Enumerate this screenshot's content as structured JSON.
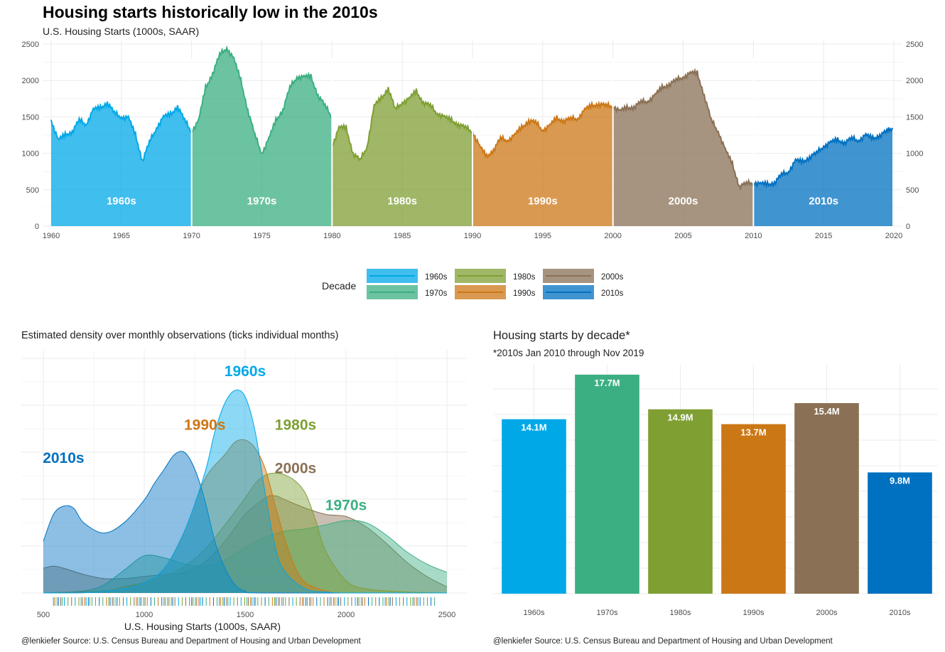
{
  "title": "Housing starts historically low in the 2010s",
  "subtitle": "U.S. Housing Starts (1000s, SAAR)",
  "colors": {
    "1960s": "#00A8E8",
    "1970s": "#3BAF82",
    "1980s": "#7F9F33",
    "1990s": "#CC7716",
    "2000s": "#8A7055",
    "2010s": "#0070C0"
  },
  "legend": {
    "title": "Decade",
    "items": [
      "1960s",
      "1970s",
      "1980s",
      "1990s",
      "2000s",
      "2010s"
    ]
  },
  "density_panel": {
    "title": "Estimated density over monthly observations (ticks individual months)",
    "caption": "@lenkiefer Source:  U.S. Census Bureau and Department of Housing and Urban Development"
  },
  "bar_panel": {
    "title": "Housing starts by decade*",
    "subtitle": "*2010s Jan 2010 through Nov 2019",
    "caption": "@lenkiefer Source: U.S. Census Bureau and Department of Housing and Urban Development"
  },
  "chart_data": [
    {
      "type": "area",
      "title": "Housing starts historically low in the 2010s",
      "subtitle": "U.S. Housing Starts (1000s, SAAR)",
      "xlabel": "",
      "ylabel": "",
      "xlim": [
        1960,
        2020
      ],
      "ylim": [
        0,
        2500
      ],
      "x_ticks": [
        1960,
        1965,
        1970,
        1975,
        1980,
        1985,
        1990,
        1995,
        2000,
        2005,
        2010,
        2015,
        2020
      ],
      "y_ticks": [
        0,
        500,
        1000,
        1500,
        2000,
        2500
      ],
      "decade_labels": [
        "1960s",
        "1970s",
        "1980s",
        "1990s",
        "2000s",
        "2010s"
      ],
      "series": [
        {
          "name": "1960s",
          "x": [
            1960,
            1960.5,
            1961,
            1961.5,
            1962,
            1962.5,
            1963,
            1963.5,
            1964,
            1964.5,
            1965,
            1965.5,
            1966,
            1966.5,
            1967,
            1967.5,
            1968,
            1968.5,
            1969,
            1969.5,
            1970
          ],
          "values": [
            1460,
            1180,
            1250,
            1300,
            1450,
            1400,
            1600,
            1620,
            1700,
            1550,
            1500,
            1490,
            1250,
            900,
            1150,
            1350,
            1500,
            1530,
            1650,
            1450,
            1300
          ]
        },
        {
          "name": "1970s",
          "x": [
            1970,
            1970.5,
            1971,
            1971.5,
            1972,
            1972.5,
            1973,
            1973.5,
            1974,
            1974.5,
            1975,
            1975.5,
            1976,
            1976.5,
            1977,
            1977.5,
            1978,
            1978.5,
            1979,
            1979.5,
            1980
          ],
          "values": [
            1300,
            1450,
            1900,
            2100,
            2350,
            2450,
            2300,
            2000,
            1600,
            1250,
            1000,
            1200,
            1450,
            1600,
            1900,
            2050,
            2050,
            2050,
            1800,
            1650,
            1500
          ]
        },
        {
          "name": "1980s",
          "x": [
            1980,
            1980.5,
            1981,
            1981.5,
            1982,
            1982.5,
            1983,
            1983.5,
            1984,
            1984.5,
            1985,
            1985.5,
            1986,
            1986.5,
            1987,
            1987.5,
            1988,
            1988.5,
            1989,
            1989.5,
            1990
          ],
          "values": [
            1100,
            1350,
            1350,
            1000,
            900,
            1100,
            1650,
            1750,
            1900,
            1600,
            1700,
            1750,
            1850,
            1700,
            1650,
            1550,
            1500,
            1450,
            1400,
            1350,
            1300
          ]
        },
        {
          "name": "1990s",
          "x": [
            1990,
            1990.5,
            1991,
            1991.5,
            1992,
            1992.5,
            1993,
            1993.5,
            1994,
            1994.5,
            1995,
            1995.5,
            1996,
            1996.5,
            1997,
            1997.5,
            1998,
            1998.5,
            1999,
            1999.5,
            2000
          ],
          "values": [
            1300,
            1100,
            950,
            1050,
            1200,
            1180,
            1250,
            1350,
            1450,
            1420,
            1320,
            1380,
            1480,
            1450,
            1470,
            1480,
            1600,
            1650,
            1680,
            1650,
            1650
          ]
        },
        {
          "name": "2000s",
          "x": [
            2000,
            2000.5,
            2001,
            2001.5,
            2002,
            2002.5,
            2003,
            2003.5,
            2004,
            2004.5,
            2005,
            2005.5,
            2006,
            2006.5,
            2007,
            2007.5,
            2008,
            2008.5,
            2009,
            2009.5,
            2010
          ],
          "values": [
            1650,
            1580,
            1620,
            1640,
            1700,
            1720,
            1800,
            1900,
            1950,
            2000,
            2050,
            2100,
            2100,
            1800,
            1450,
            1300,
            1050,
            850,
            550,
            580,
            600
          ]
        },
        {
          "name": "2010s",
          "x": [
            2010,
            2010.5,
            2011,
            2011.5,
            2012,
            2012.5,
            2013,
            2013.5,
            2014,
            2014.5,
            2015,
            2015.5,
            2016,
            2016.5,
            2017,
            2017.5,
            2018,
            2018.5,
            2019,
            2019.5,
            2019.9
          ],
          "values": [
            600,
            580,
            570,
            600,
            700,
            750,
            900,
            880,
            950,
            1000,
            1100,
            1150,
            1180,
            1150,
            1200,
            1180,
            1250,
            1200,
            1250,
            1300,
            1350
          ]
        }
      ]
    },
    {
      "type": "area",
      "title": "Estimated density over monthly observations (ticks individual months)",
      "xlabel": "U.S. Housing Starts (1000s, SAAR)",
      "ylabel": "",
      "xlim": [
        500,
        2500
      ],
      "x_ticks": [
        500,
        1000,
        1500,
        2000,
        2500
      ],
      "ylim": [
        0,
        1
      ],
      "series": [
        {
          "name": "1960s",
          "x": [
            500,
            700,
            900,
            1000,
            1100,
            1200,
            1300,
            1350,
            1400,
            1450,
            1500,
            1550,
            1600,
            1650,
            1700,
            1800,
            1900,
            2000,
            2500
          ],
          "values": [
            0,
            0.001,
            0.02,
            0.05,
            0.12,
            0.3,
            0.58,
            0.78,
            0.92,
            0.98,
            0.95,
            0.78,
            0.48,
            0.22,
            0.1,
            0.02,
            0.005,
            0,
            0
          ]
        },
        {
          "name": "1970s",
          "x": [
            500,
            700,
            800,
            900,
            1000,
            1100,
            1200,
            1300,
            1400,
            1500,
            1600,
            1700,
            1800,
            1900,
            2000,
            2100,
            2200,
            2300,
            2400,
            2500
          ],
          "values": [
            0,
            0.01,
            0.04,
            0.11,
            0.18,
            0.17,
            0.14,
            0.13,
            0.16,
            0.22,
            0.27,
            0.3,
            0.31,
            0.33,
            0.35,
            0.34,
            0.28,
            0.2,
            0.14,
            0.1
          ]
        },
        {
          "name": "1980s",
          "x": [
            500,
            800,
            900,
            1000,
            1100,
            1200,
            1300,
            1400,
            1500,
            1550,
            1600,
            1650,
            1700,
            1750,
            1800,
            1850,
            1900,
            2000,
            2100,
            2300,
            2500
          ],
          "values": [
            0,
            0.01,
            0.03,
            0.05,
            0.08,
            0.13,
            0.21,
            0.33,
            0.46,
            0.53,
            0.57,
            0.58,
            0.57,
            0.54,
            0.48,
            0.35,
            0.2,
            0.06,
            0.02,
            0.005,
            0
          ]
        },
        {
          "name": "1990s",
          "x": [
            500,
            800,
            900,
            1000,
            1100,
            1200,
            1300,
            1400,
            1450,
            1500,
            1550,
            1600,
            1650,
            1700,
            1750,
            1800,
            1900,
            2000,
            2500
          ],
          "values": [
            0,
            0.005,
            0.02,
            0.05,
            0.12,
            0.3,
            0.55,
            0.67,
            0.73,
            0.74,
            0.7,
            0.6,
            0.42,
            0.25,
            0.12,
            0.05,
            0.01,
            0,
            0
          ]
        },
        {
          "name": "2000s",
          "x": [
            500,
            550,
            600,
            700,
            800,
            900,
            1000,
            1100,
            1200,
            1300,
            1400,
            1500,
            1600,
            1650,
            1700,
            1800,
            1900,
            2000,
            2100,
            2200,
            2300,
            2400,
            2500
          ],
          "values": [
            0.12,
            0.13,
            0.12,
            0.09,
            0.07,
            0.07,
            0.08,
            0.09,
            0.1,
            0.15,
            0.25,
            0.38,
            0.46,
            0.47,
            0.45,
            0.41,
            0.38,
            0.37,
            0.32,
            0.24,
            0.15,
            0.08,
            0.03
          ]
        },
        {
          "name": "2010s",
          "x": [
            500,
            550,
            600,
            650,
            700,
            800,
            900,
            1000,
            1050,
            1100,
            1150,
            1200,
            1250,
            1300,
            1350,
            1400,
            1450,
            1500,
            1600,
            2500
          ],
          "values": [
            0.25,
            0.38,
            0.42,
            0.41,
            0.34,
            0.29,
            0.34,
            0.45,
            0.53,
            0.6,
            0.67,
            0.68,
            0.6,
            0.45,
            0.25,
            0.12,
            0.04,
            0.01,
            0,
            0
          ]
        }
      ],
      "peak_labels": [
        {
          "name": "1960s",
          "x": 1500,
          "y": 1.05
        },
        {
          "name": "1990s",
          "x": 1300,
          "y": 0.79
        },
        {
          "name": "1980s",
          "x": 1750,
          "y": 0.79
        },
        {
          "name": "2000s",
          "x": 1750,
          "y": 0.58
        },
        {
          "name": "1970s",
          "x": 2000,
          "y": 0.4
        },
        {
          "name": "2010s",
          "x": 600,
          "y": 0.63
        }
      ]
    },
    {
      "type": "bar",
      "title": "Housing starts by decade*",
      "subtitle": "*2010s Jan 2010 through Nov 2019",
      "xlabel": "",
      "ylabel": "",
      "ylim": [
        0,
        18.5
      ],
      "categories": [
        "1960s",
        "1970s",
        "1980s",
        "1990s",
        "2000s",
        "2010s"
      ],
      "values": [
        14.1,
        17.7,
        14.9,
        13.7,
        15.4,
        9.8
      ],
      "value_labels": [
        "14.1M",
        "17.7M",
        "14.9M",
        "13.7M",
        "15.4M",
        "9.8M"
      ]
    }
  ]
}
